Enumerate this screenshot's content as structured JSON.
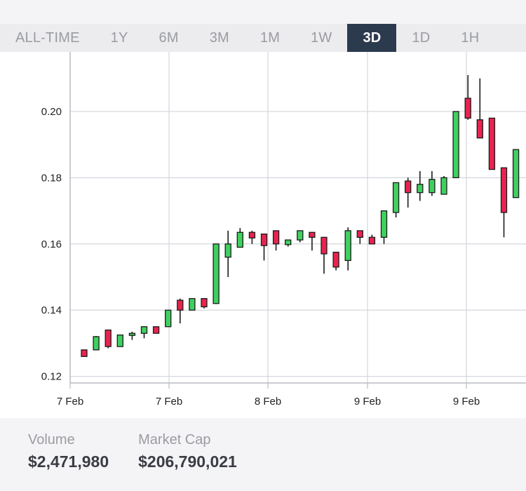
{
  "range_tabs": [
    "ALL-TIME",
    "1Y",
    "6M",
    "3M",
    "1M",
    "1W",
    "3D",
    "1D",
    "1H"
  ],
  "active_range": "3D",
  "stats": {
    "volume_label": "Volume",
    "volume_value": "$2,471,980",
    "market_cap_label": "Market Cap",
    "market_cap_value": "$206,790,021"
  },
  "chart_data": {
    "type": "candlestick",
    "title": "",
    "xlabel": "",
    "ylabel": "",
    "ylim": [
      0.118,
      0.218
    ],
    "y_ticks": [
      0.12,
      0.14,
      0.16,
      0.18,
      0.2
    ],
    "x_tick_labels": [
      "7 Feb",
      "7 Feb",
      "8 Feb",
      "9 Feb",
      "9 Feb"
    ],
    "grid": true,
    "up_color": "#3ed15f",
    "down_color": "#e8234f",
    "candles": [
      {
        "open": 0.128,
        "high": 0.128,
        "low": 0.126,
        "close": 0.126
      },
      {
        "open": 0.128,
        "high": 0.1322,
        "low": 0.128,
        "close": 0.132
      },
      {
        "open": 0.134,
        "high": 0.134,
        "low": 0.1285,
        "close": 0.129
      },
      {
        "open": 0.129,
        "high": 0.1325,
        "low": 0.129,
        "close": 0.1325
      },
      {
        "open": 0.1325,
        "high": 0.1335,
        "low": 0.131,
        "close": 0.133
      },
      {
        "open": 0.133,
        "high": 0.135,
        "low": 0.1315,
        "close": 0.135
      },
      {
        "open": 0.135,
        "high": 0.135,
        "low": 0.133,
        "close": 0.133
      },
      {
        "open": 0.135,
        "high": 0.14,
        "low": 0.135,
        "close": 0.14
      },
      {
        "open": 0.143,
        "high": 0.1435,
        "low": 0.136,
        "close": 0.14
      },
      {
        "open": 0.14,
        "high": 0.1435,
        "low": 0.14,
        "close": 0.1435
      },
      {
        "open": 0.1435,
        "high": 0.1435,
        "low": 0.1405,
        "close": 0.141
      },
      {
        "open": 0.142,
        "high": 0.16,
        "low": 0.142,
        "close": 0.16
      },
      {
        "open": 0.156,
        "high": 0.164,
        "low": 0.15,
        "close": 0.16
      },
      {
        "open": 0.159,
        "high": 0.1648,
        "low": 0.159,
        "close": 0.1635
      },
      {
        "open": 0.1635,
        "high": 0.164,
        "low": 0.16,
        "close": 0.1618
      },
      {
        "open": 0.163,
        "high": 0.163,
        "low": 0.155,
        "close": 0.1595
      },
      {
        "open": 0.164,
        "high": 0.164,
        "low": 0.158,
        "close": 0.16
      },
      {
        "open": 0.1598,
        "high": 0.1612,
        "low": 0.1592,
        "close": 0.1612
      },
      {
        "open": 0.1612,
        "high": 0.164,
        "low": 0.1605,
        "close": 0.164
      },
      {
        "open": 0.1635,
        "high": 0.1635,
        "low": 0.158,
        "close": 0.162
      },
      {
        "open": 0.162,
        "high": 0.162,
        "low": 0.151,
        "close": 0.157
      },
      {
        "open": 0.1575,
        "high": 0.1575,
        "low": 0.152,
        "close": 0.153
      },
      {
        "open": 0.155,
        "high": 0.165,
        "low": 0.152,
        "close": 0.164
      },
      {
        "open": 0.164,
        "high": 0.164,
        "low": 0.16,
        "close": 0.162
      },
      {
        "open": 0.162,
        "high": 0.1628,
        "low": 0.16,
        "close": 0.16
      },
      {
        "open": 0.162,
        "high": 0.17,
        "low": 0.16,
        "close": 0.17
      },
      {
        "open": 0.1695,
        "high": 0.1785,
        "low": 0.168,
        "close": 0.1785
      },
      {
        "open": 0.179,
        "high": 0.18,
        "low": 0.171,
        "close": 0.1755
      },
      {
        "open": 0.1755,
        "high": 0.182,
        "low": 0.173,
        "close": 0.178
      },
      {
        "open": 0.1755,
        "high": 0.182,
        "low": 0.1745,
        "close": 0.1795
      },
      {
        "open": 0.175,
        "high": 0.1805,
        "low": 0.175,
        "close": 0.18
      },
      {
        "open": 0.18,
        "high": 0.2,
        "low": 0.18,
        "close": 0.2
      },
      {
        "open": 0.204,
        "high": 0.211,
        "low": 0.1975,
        "close": 0.198
      },
      {
        "open": 0.1975,
        "high": 0.21,
        "low": 0.192,
        "close": 0.192
      },
      {
        "open": 0.198,
        "high": 0.198,
        "low": 0.1825,
        "close": 0.1825
      },
      {
        "open": 0.183,
        "high": 0.183,
        "low": 0.162,
        "close": 0.1695
      },
      {
        "open": 0.174,
        "high": 0.1885,
        "low": 0.174,
        "close": 0.1885
      }
    ]
  }
}
